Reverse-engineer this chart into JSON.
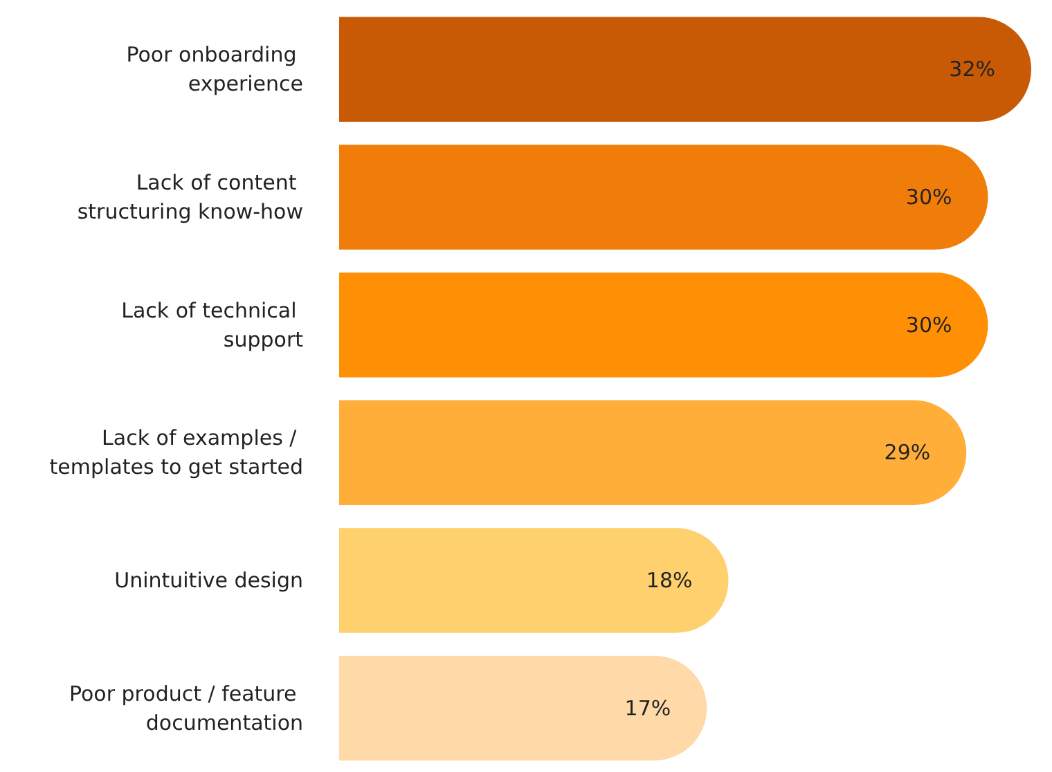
{
  "chart_data": {
    "type": "bar",
    "orientation": "horizontal",
    "value_labels": [
      "32%",
      "30%",
      "30%",
      "29%",
      "18%",
      "17%"
    ],
    "categories": [
      "Poor onboarding experience",
      "Lack of content structuring know-how",
      "Lack of technical support",
      "Lack of examples / templates to get started",
      "Unintuitive design",
      "Poor product / feature documentation"
    ],
    "values": [
      32,
      30,
      30,
      29,
      18,
      17
    ],
    "colors": [
      "#c85a05",
      "#f07d0a",
      "#ff9005",
      "#ffae3a",
      "#ffd06e",
      "#ffd9a8"
    ]
  }
}
